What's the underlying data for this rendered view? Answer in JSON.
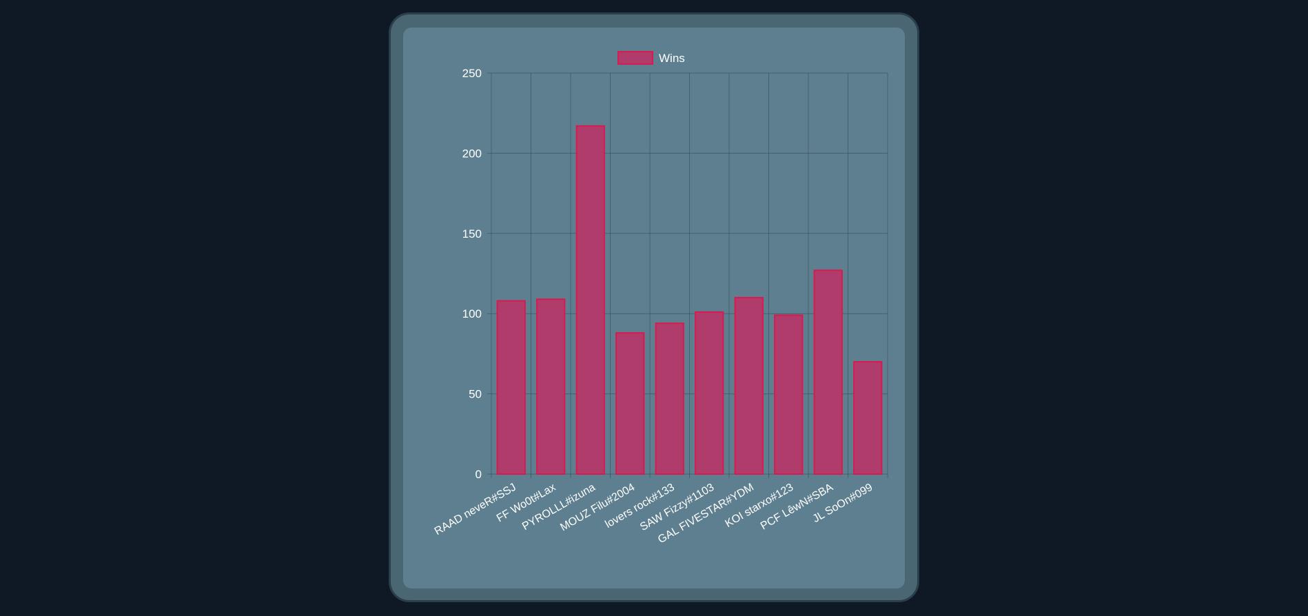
{
  "chart_data": {
    "type": "bar",
    "categories": [
      "RAAD neveR#SSJ",
      "FF Wo0t#Lax",
      "PYROLLL#izuna",
      "MOUZ Filu#2004",
      "lovers rock#133",
      "SAW Fizzy#1103",
      "GAL FIVESTAR#YDM",
      "KOI starxo#123",
      "PCF LêwN#SBA",
      "JL SoOn#099"
    ],
    "series": [
      {
        "name": "Wins",
        "values": [
          108,
          109,
          217,
          88,
          94,
          101,
          110,
          99,
          127,
          70
        ],
        "color": "#b03c6b",
        "border_color": "#d81a4f"
      }
    ],
    "ylim": [
      0,
      250
    ],
    "yticks": [
      "0",
      "50",
      "100",
      "150",
      "200",
      "250"
    ],
    "grid": true,
    "legend_position": "top-center"
  }
}
